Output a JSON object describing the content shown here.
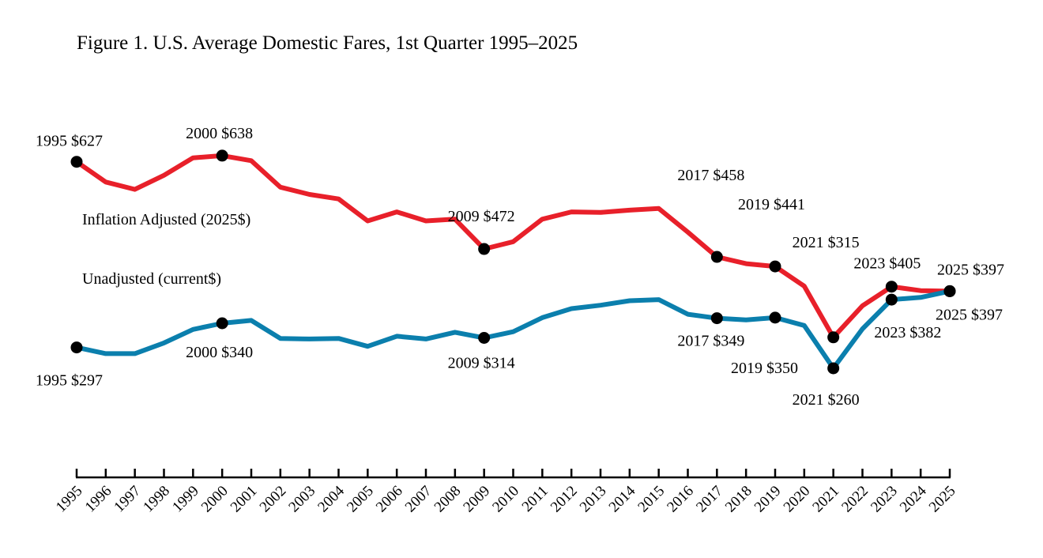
{
  "chart_data": {
    "type": "line",
    "title": "Figure 1. U.S. Average Domestic Fares, 1st Quarter 1995–2025",
    "xlabel": "",
    "ylabel": "",
    "ylim": [
      0,
      850
    ],
    "grid": false,
    "x": [
      1995,
      1996,
      1997,
      1998,
      1999,
      2000,
      2001,
      2002,
      2003,
      2004,
      2005,
      2006,
      2007,
      2008,
      2009,
      2010,
      2011,
      2012,
      2013,
      2014,
      2015,
      2016,
      2017,
      2018,
      2019,
      2020,
      2021,
      2022,
      2023,
      2024,
      2025
    ],
    "x_tick_labels": [
      "1995",
      "1996",
      "1997",
      "1998",
      "1999",
      "2000",
      "2001",
      "2002",
      "2003",
      "2004",
      "2005",
      "2006",
      "2007",
      "2008",
      "2009",
      "2010",
      "2011",
      "2012",
      "2013",
      "2014",
      "2015",
      "2016",
      "2017",
      "2018",
      "2019",
      "2020",
      "2021",
      "2022",
      "2023",
      "2024",
      "2025"
    ],
    "series": [
      {
        "name": "Inflation Adjusted (2025$)",
        "color": "#e8202a",
        "values": [
          627,
          591,
          578,
          603,
          634,
          638,
          629,
          582,
          569,
          561,
          522,
          538,
          522,
          525,
          472,
          485,
          525,
          538,
          537,
          541,
          544,
          502,
          458,
          446,
          441,
          406,
          315,
          371,
          405,
          398,
          397
        ],
        "label_position": "left"
      },
      {
        "name": "Unadjusted (current$)",
        "color": "#0b7fad",
        "values": [
          297,
          286,
          286,
          305,
          329,
          340,
          345,
          313,
          312,
          313,
          299,
          317,
          312,
          324,
          314,
          325,
          350,
          366,
          372,
          380,
          382,
          356,
          349,
          346,
          350,
          336,
          260,
          330,
          382,
          386,
          397
        ],
        "label_position": "left"
      }
    ],
    "annotations": [
      {
        "series": 0,
        "year": 1995,
        "text": "1995 $627",
        "anchor": "start",
        "dx": -52,
        "dy": -20
      },
      {
        "series": 0,
        "year": 2000,
        "text": "2000 $638",
        "anchor": "start",
        "dx": -46,
        "dy": -22
      },
      {
        "series": 0,
        "year": 2009,
        "text": "2009 $472",
        "anchor": "start",
        "dx": -46,
        "dy": -35
      },
      {
        "series": 0,
        "year": 2017,
        "text": "2017 $458",
        "anchor": "start",
        "dx": -50,
        "dy": -97
      },
      {
        "series": 0,
        "year": 2019,
        "text": "2019 $441",
        "anchor": "start",
        "dx": -47,
        "dy": -72
      },
      {
        "series": 0,
        "year": 2021,
        "text": "2021 $315",
        "anchor": "start",
        "dx": -52,
        "dy": -114
      },
      {
        "series": 0,
        "year": 2023,
        "text": "2023 $405",
        "anchor": "start",
        "dx": -48,
        "dy": -23
      },
      {
        "series": 0,
        "year": 2025,
        "text": "2025 $397",
        "anchor": "start",
        "dx": -16,
        "dy": -21
      },
      {
        "series": 1,
        "year": 1995,
        "text": "1995 $297",
        "anchor": "start",
        "dx": -52,
        "dy": 48
      },
      {
        "series": 1,
        "year": 2000,
        "text": "2000 $340",
        "anchor": "start",
        "dx": -46,
        "dy": 43
      },
      {
        "series": 1,
        "year": 2009,
        "text": "2009 $314",
        "anchor": "start",
        "dx": -46,
        "dy": 38
      },
      {
        "series": 1,
        "year": 2017,
        "text": "2017 $349",
        "anchor": "start",
        "dx": -50,
        "dy": 35
      },
      {
        "series": 1,
        "year": 2019,
        "text": "2019 $350",
        "anchor": "start",
        "dx": -56,
        "dy": 70
      },
      {
        "series": 1,
        "year": 2021,
        "text": "2021 $260",
        "anchor": "start",
        "dx": -52,
        "dy": 46
      },
      {
        "series": 1,
        "year": 2023,
        "text": "2023 $382",
        "anchor": "start",
        "dx": -22,
        "dy": 48
      },
      {
        "series": 1,
        "year": 2025,
        "text": "2025 $397",
        "anchor": "start",
        "dx": -18,
        "dy": 36
      }
    ]
  }
}
